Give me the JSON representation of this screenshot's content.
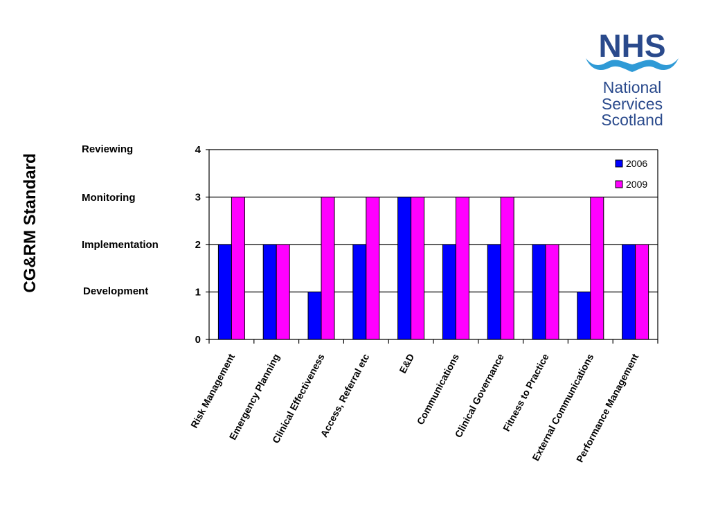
{
  "page": {
    "title": "CG&RM Standard",
    "levels": [
      "Development",
      "Implementation",
      "Monitoring",
      "Reviewing"
    ]
  },
  "logo": {
    "brand": "NHS",
    "lines": [
      "National",
      "Services",
      "Scotland"
    ],
    "color": "#2a4a8c",
    "wave_color": "#2f9ad6"
  },
  "chart_data": {
    "type": "bar",
    "categories": [
      "Risk Management",
      "Emergency Planning",
      "Clinical Effectiveness",
      "Access, Referral etc",
      "E&D",
      "Communications",
      "Clinical Governance",
      "Fitness to Practice",
      "External Communications",
      "Performance Management"
    ],
    "series": [
      {
        "name": "2006",
        "values": [
          2,
          2,
          1,
          2,
          3,
          2,
          2,
          2,
          1,
          2
        ],
        "color": "#0000ff"
      },
      {
        "name": "2009",
        "values": [
          3,
          2,
          3,
          3,
          3,
          3,
          3,
          2,
          3,
          2
        ],
        "color": "#ff00ff"
      }
    ],
    "yticks": [
      "0",
      "1",
      "2",
      "3",
      "4"
    ],
    "ylim": [
      0,
      4
    ],
    "grid": true,
    "legend": "top-right"
  }
}
